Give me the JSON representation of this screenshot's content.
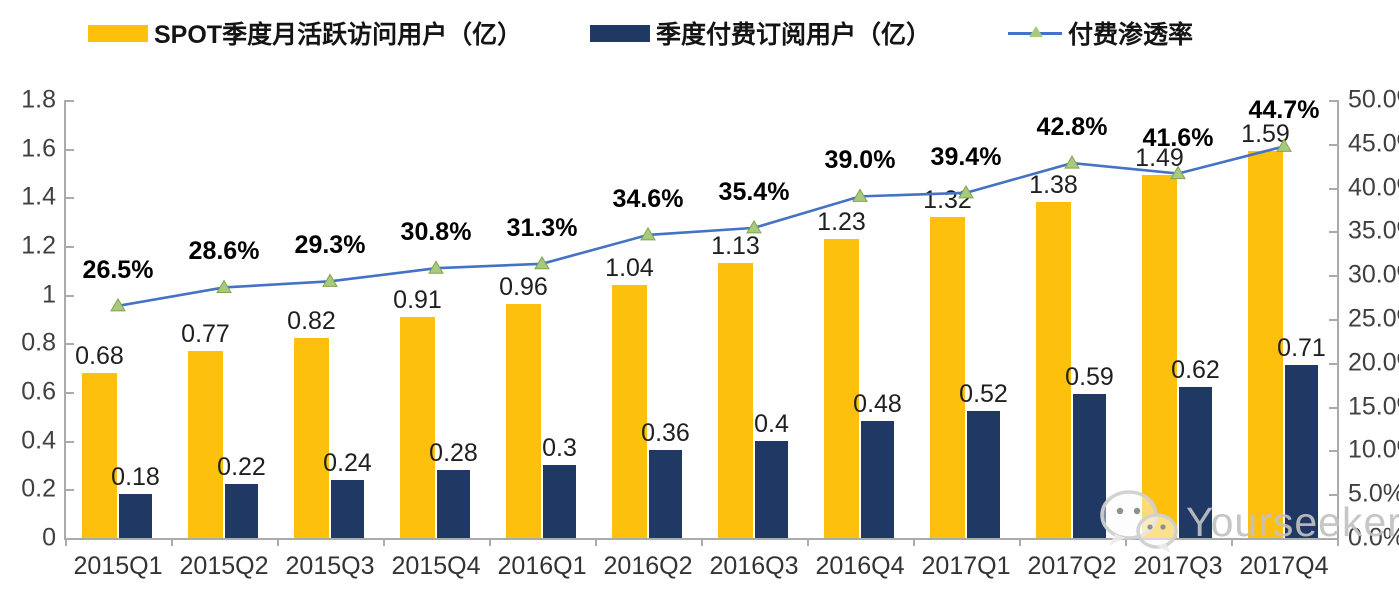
{
  "legend": [
    {
      "label": "SPOT季度月活跃访问用户（亿）",
      "color": "#FDC00D",
      "type": "bar"
    },
    {
      "label": "季度付费订阅用户（亿）",
      "color": "#1F3864",
      "type": "bar"
    },
    {
      "label": "付费渗透率",
      "color": "#4472C4",
      "marker_color": "#A9C97D",
      "type": "line"
    }
  ],
  "watermark": {
    "text": "Yourseeker",
    "icon": "wechat-icon"
  },
  "colors": {
    "mau_bar": "#FDC00D",
    "sub_bar": "#1F3864",
    "line": "#4472C4",
    "marker_fill": "#A9C97D",
    "marker_stroke": "#7FA650",
    "axis": "#ABABAB",
    "axis_text": "#404040"
  },
  "chart_data": {
    "type": "bar",
    "subtype": "grouped bars + line on secondary axis",
    "categories": [
      "2015Q1",
      "2015Q2",
      "2015Q3",
      "2015Q4",
      "2016Q1",
      "2016Q2",
      "2016Q3",
      "2016Q4",
      "2017Q1",
      "2017Q2",
      "2017Q3",
      "2017Q4"
    ],
    "series": [
      {
        "name": "SPOT季度月活跃访问用户（亿）",
        "type": "bar",
        "axis": "left",
        "color": "#FDC00D",
        "values": [
          0.68,
          0.77,
          0.82,
          0.91,
          0.96,
          1.04,
          1.13,
          1.23,
          1.32,
          1.38,
          1.49,
          1.59
        ],
        "labels": [
          "0.68",
          "0.77",
          "0.82",
          "0.91",
          "0.96",
          "1.04",
          "1.13",
          "1.23",
          "1.32",
          "1.38",
          "1.49",
          "1.59"
        ]
      },
      {
        "name": "季度付费订阅用户（亿）",
        "type": "bar",
        "axis": "left",
        "color": "#1F3864",
        "values": [
          0.18,
          0.22,
          0.24,
          0.28,
          0.3,
          0.36,
          0.4,
          0.48,
          0.52,
          0.59,
          0.62,
          0.71
        ],
        "labels": [
          "0.18",
          "0.22",
          "0.24",
          "0.28",
          "0.3",
          "0.36",
          "0.4",
          "0.48",
          "0.52",
          "0.59",
          "0.62",
          "0.71"
        ]
      },
      {
        "name": "付费渗透率",
        "type": "line",
        "axis": "right",
        "color": "#4472C4",
        "values": [
          26.5,
          28.6,
          29.3,
          30.8,
          31.3,
          34.6,
          35.4,
          39.0,
          39.4,
          42.8,
          41.6,
          44.7
        ],
        "labels": [
          "26.5%",
          "28.6%",
          "29.3%",
          "30.8%",
          "31.3%",
          "34.6%",
          "35.4%",
          "39.0%",
          "39.4%",
          "42.8%",
          "41.6%",
          "44.7%"
        ]
      }
    ],
    "left_axis": {
      "min": 0,
      "max": 1.8,
      "tick_labels": [
        "1.8",
        "1.6",
        "1.4",
        "1.2",
        "1",
        "0.8",
        "0.6",
        "0.4",
        "0.2",
        "0"
      ]
    },
    "right_axis": {
      "min": 0,
      "max": 50,
      "tick_labels": [
        "50.0%",
        "45.0%",
        "40.0%",
        "35.0%",
        "30.0%",
        "25.0%",
        "20.0%",
        "15.0%",
        "10.0%",
        "5.0%",
        "0.0%"
      ]
    },
    "grid": false,
    "legend_position": "top",
    "title": ""
  }
}
